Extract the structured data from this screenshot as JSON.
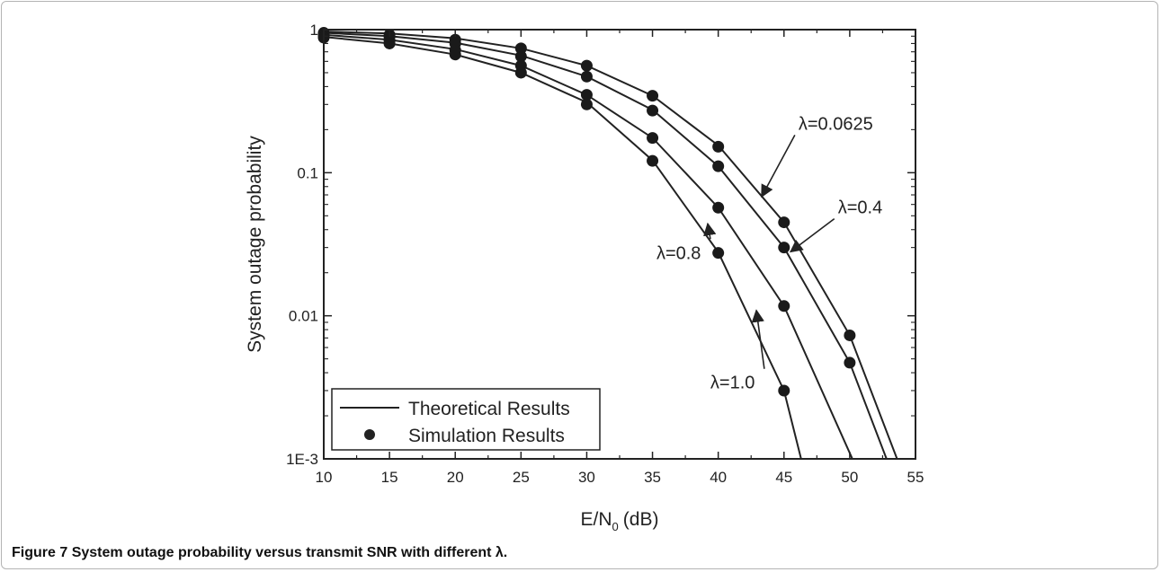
{
  "caption": {
    "label": "Figure 7",
    "text": "System outage probability versus transmit SNR with different λ."
  },
  "chart_data": {
    "type": "line",
    "xlabel": "E/N",
    "xlabel_sub": "0",
    "xlabel_unit": "(dB)",
    "ylabel": "System outage probability",
    "xlim": [
      10,
      55
    ],
    "ylim": [
      0.001,
      1
    ],
    "yscale": "log",
    "x_ticks": [
      10,
      15,
      20,
      25,
      30,
      35,
      40,
      45,
      50,
      55
    ],
    "y_ticks": [
      {
        "value": 1,
        "label": "1"
      },
      {
        "value": 0.1,
        "label": "0.1"
      },
      {
        "value": 0.01,
        "label": "0.01"
      },
      {
        "value": 0.001,
        "label": "1E-3"
      }
    ],
    "grid": false,
    "legend": {
      "position": "bottom-left",
      "entries": [
        {
          "marker": "line",
          "label": "Theoretical Results"
        },
        {
          "marker": "dot",
          "label": "Simulation Results"
        }
      ]
    },
    "series": [
      {
        "lambda": "0.0625",
        "theory": [
          [
            10,
            0.97
          ],
          [
            15,
            0.94
          ],
          [
            20,
            0.87
          ],
          [
            25,
            0.74
          ],
          [
            30,
            0.56
          ],
          [
            35,
            0.345
          ],
          [
            40,
            0.155
          ],
          [
            45,
            0.045
          ],
          [
            50,
            0.0073
          ],
          [
            53.6,
            0.001
          ]
        ],
        "simulation": [
          [
            10,
            0.95
          ],
          [
            15,
            0.92
          ],
          [
            20,
            0.85
          ],
          [
            25,
            0.74
          ],
          [
            30,
            0.56
          ],
          [
            35,
            0.345
          ],
          [
            40,
            0.152
          ],
          [
            45,
            0.045
          ],
          [
            50,
            0.0073
          ]
        ]
      },
      {
        "lambda": "0.4",
        "theory": [
          [
            10,
            0.95
          ],
          [
            15,
            0.9
          ],
          [
            20,
            0.81
          ],
          [
            25,
            0.66
          ],
          [
            30,
            0.47
          ],
          [
            35,
            0.275
          ],
          [
            40,
            0.111
          ],
          [
            45,
            0.03
          ],
          [
            50,
            0.0047
          ],
          [
            52.8,
            0.001
          ]
        ],
        "simulation": [
          [
            10,
            0.93
          ],
          [
            15,
            0.89
          ],
          [
            20,
            0.8
          ],
          [
            25,
            0.65
          ],
          [
            30,
            0.47
          ],
          [
            35,
            0.272
          ],
          [
            40,
            0.111
          ],
          [
            45,
            0.03
          ],
          [
            50,
            0.0047
          ]
        ]
      },
      {
        "lambda": "0.8",
        "theory": [
          [
            10,
            0.92
          ],
          [
            15,
            0.85
          ],
          [
            20,
            0.73
          ],
          [
            25,
            0.56
          ],
          [
            30,
            0.35
          ],
          [
            35,
            0.175
          ],
          [
            40,
            0.057
          ],
          [
            45,
            0.0117
          ],
          [
            50.2,
            0.001
          ]
        ],
        "simulation": [
          [
            10,
            0.9
          ],
          [
            15,
            0.84
          ],
          [
            20,
            0.72
          ],
          [
            25,
            0.56
          ],
          [
            30,
            0.35
          ],
          [
            35,
            0.175
          ],
          [
            40,
            0.057
          ],
          [
            45,
            0.0117
          ]
        ]
      },
      {
        "lambda": "1.0",
        "theory": [
          [
            10,
            0.89
          ],
          [
            15,
            0.8
          ],
          [
            20,
            0.67
          ],
          [
            25,
            0.5
          ],
          [
            30,
            0.31
          ],
          [
            35,
            0.122
          ],
          [
            40,
            0.0278
          ],
          [
            45,
            0.003
          ],
          [
            46.3,
            0.001
          ]
        ],
        "simulation": [
          [
            10,
            0.88
          ],
          [
            15,
            0.8
          ],
          [
            20,
            0.67
          ],
          [
            25,
            0.5
          ],
          [
            30,
            0.3
          ],
          [
            35,
            0.121
          ],
          [
            40,
            0.0275
          ],
          [
            45,
            0.003
          ]
        ]
      }
    ],
    "annotations": [
      {
        "text": "λ=0.0625",
        "label_at": [
          46.1,
          0.2
        ],
        "arrow_to": [
          43.3,
          0.068
        ]
      },
      {
        "text": "λ=0.4",
        "label_at": [
          49.1,
          0.052
        ],
        "arrow_to": [
          45.5,
          0.028
        ]
      },
      {
        "text": "λ=0.8",
        "label_at": [
          35.3,
          0.025
        ],
        "arrow_to": [
          39.2,
          0.044
        ]
      },
      {
        "text": "λ=1.0",
        "label_at": [
          39.4,
          0.0031
        ],
        "arrow_to": [
          42.9,
          0.0109
        ]
      }
    ]
  }
}
